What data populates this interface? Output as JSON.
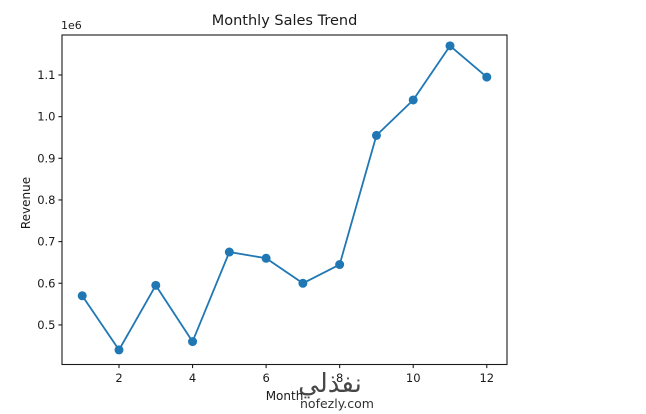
{
  "figure": {
    "background": "#ffffff",
    "watermark": {
      "arabic_text": "نفذلي",
      "domain_text": "nofezly.com",
      "arabic_color": "#cfc0a6",
      "domain_color": "#c9c9c9"
    }
  },
  "chart_data": {
    "type": "line",
    "title": "Monthly Sales Trend",
    "xlabel": "Month",
    "ylabel": "Revenue",
    "y_offset_label": "1e6",
    "x": [
      1,
      2,
      3,
      4,
      5,
      6,
      7,
      8,
      9,
      10,
      11,
      12
    ],
    "values": [
      570000,
      440000,
      595000,
      460000,
      675000,
      660000,
      600000,
      645000,
      955000,
      1040000,
      1170000,
      1095000
    ],
    "xticks": [
      2,
      4,
      6,
      8,
      10,
      12
    ],
    "ytick_values": [
      500000,
      600000,
      700000,
      800000,
      900000,
      1000000,
      1100000
    ],
    "ytick_labels": [
      "0.5",
      "0.6",
      "0.7",
      "0.8",
      "0.9",
      "1.0",
      "1.1"
    ],
    "xlim": [
      0.45,
      12.55
    ],
    "ylim": [
      405000,
      1196000
    ],
    "line_color": "#1f77b4",
    "marker": "circle",
    "marker_color": "#1f77b4",
    "grid": false,
    "axis_color": "#1a1a1a"
  }
}
